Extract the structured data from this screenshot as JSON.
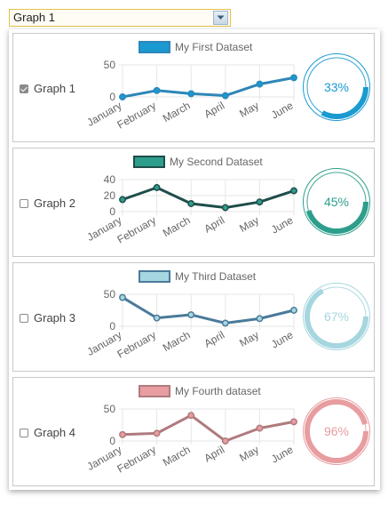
{
  "select": {
    "value": "Graph 1"
  },
  "graphs": [
    {
      "label": "Graph 1",
      "checked": true,
      "dataset_label": "My First Dataset",
      "color": "#2e86b8",
      "fill": "#1a9ad0",
      "percent_value": 33,
      "percent_label": "33%"
    },
    {
      "label": "Graph 2",
      "checked": false,
      "dataset_label": "My Second Dataset",
      "color": "#1e4d4a",
      "fill": "#2e9e8c",
      "percent_value": 45,
      "percent_label": "45%"
    },
    {
      "label": "Graph 3",
      "checked": false,
      "dataset_label": "My Third Dataset",
      "color": "#4a7a9a",
      "fill": "#a6d6df",
      "percent_value": 67,
      "percent_label": "67%"
    },
    {
      "label": "Graph 4",
      "checked": false,
      "dataset_label": "My Fourth dataset",
      "color": "#b07a7e",
      "fill": "#e89da0",
      "percent_value": 96,
      "percent_label": "96%"
    }
  ],
  "chart_data": [
    {
      "type": "line",
      "legend": "My First Dataset",
      "categories": [
        "January",
        "February",
        "March",
        "April",
        "May",
        "June"
      ],
      "values": [
        0,
        10,
        5,
        2,
        20,
        30
      ],
      "yticks": [
        0,
        50
      ],
      "ylim": [
        0,
        50
      ]
    },
    {
      "type": "line",
      "legend": "My Second Dataset",
      "categories": [
        "January",
        "February",
        "March",
        "April",
        "May",
        "June"
      ],
      "values": [
        15,
        30,
        10,
        5,
        12,
        26
      ],
      "yticks": [
        0,
        20,
        40
      ],
      "ylim": [
        0,
        40
      ]
    },
    {
      "type": "line",
      "legend": "My Third Dataset",
      "categories": [
        "January",
        "February",
        "March",
        "April",
        "May",
        "June"
      ],
      "values": [
        45,
        13,
        18,
        5,
        12,
        25
      ],
      "yticks": [
        0,
        50
      ],
      "ylim": [
        0,
        50
      ]
    },
    {
      "type": "line",
      "legend": "My Fourth dataset",
      "categories": [
        "January",
        "February",
        "March",
        "April",
        "May",
        "June"
      ],
      "values": [
        10,
        12,
        40,
        0,
        20,
        30
      ],
      "yticks": [
        0,
        50
      ],
      "ylim": [
        0,
        50
      ]
    }
  ]
}
